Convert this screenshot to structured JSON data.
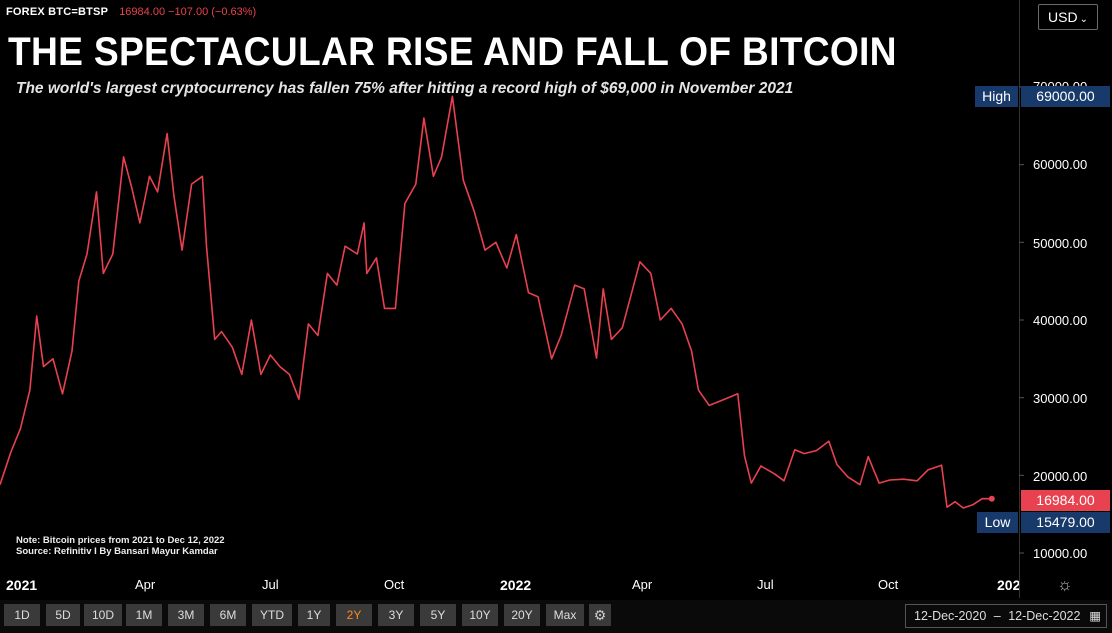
{
  "header": {
    "symbol": "FOREX BTC=BTSP",
    "price_change": "16984.00 −107.00 (−0.63%)",
    "currency": "USD",
    "currency_chevron": "⌄"
  },
  "title": "THE SPECTACULAR RISE AND FALL OF BITCOIN",
  "subtitle": "The world's largest cryptocurrency has fallen 75% after hitting a record high of $69,000 in November 2021",
  "note_line1": "Note: Bitcoin prices from 2021 to Dec 12, 2022",
  "note_line2": "Source: Refinitiv I By Bansari Mayur Kamdar",
  "y_axis": {
    "ticks": [
      "70000.00",
      "60000.00",
      "50000.00",
      "40000.00",
      "30000.00",
      "20000.00",
      "10000.00"
    ],
    "high_label": "High",
    "high_value": "69000.00",
    "low_label": "Low",
    "low_value": "15479.00",
    "last_value": "16984.00"
  },
  "x_axis": {
    "ticks": [
      {
        "label": "2021",
        "year": true
      },
      {
        "label": "Apr",
        "year": false
      },
      {
        "label": "Jul",
        "year": false
      },
      {
        "label": "Oct",
        "year": false
      },
      {
        "label": "2022",
        "year": true
      },
      {
        "label": "Apr",
        "year": false
      },
      {
        "label": "Jul",
        "year": false
      },
      {
        "label": "Oct",
        "year": false
      },
      {
        "label": "202",
        "year": true
      }
    ]
  },
  "range_buttons": [
    "1D",
    "5D",
    "10D",
    "1M",
    "3M",
    "6M",
    "YTD",
    "1Y",
    "2Y",
    "3Y",
    "5Y",
    "10Y",
    "20Y",
    "Max"
  ],
  "active_range": "2Y",
  "date_range": {
    "from": "12-Dec-2020",
    "sep": "–",
    "to": "12-Dec-2022"
  },
  "colors": {
    "line": "#e8414f",
    "background": "#000000",
    "tag_navy": "#183a6a",
    "active_range": "#ff8a1f"
  },
  "chart_data": {
    "type": "line",
    "series": [
      {
        "values": [
          [
            "2020-12-12",
            18800
          ],
          [
            "2020-12-20",
            23000
          ],
          [
            "2020-12-27",
            26000
          ],
          [
            "2021-01-03",
            31000
          ],
          [
            "2021-01-08",
            40500
          ],
          [
            "2021-01-13",
            34000
          ],
          [
            "2021-01-20",
            35000
          ],
          [
            "2021-01-27",
            30500
          ],
          [
            "2021-02-03",
            36000
          ],
          [
            "2021-02-08",
            45000
          ],
          [
            "2021-02-14",
            48500
          ],
          [
            "2021-02-21",
            56500
          ],
          [
            "2021-02-26",
            46000
          ],
          [
            "2021-03-05",
            48500
          ],
          [
            "2021-03-13",
            61000
          ],
          [
            "2021-03-19",
            57000
          ],
          [
            "2021-03-25",
            52500
          ],
          [
            "2021-04-01",
            58500
          ],
          [
            "2021-04-07",
            56500
          ],
          [
            "2021-04-14",
            64000
          ],
          [
            "2021-04-19",
            56000
          ],
          [
            "2021-04-25",
            49000
          ],
          [
            "2021-05-02",
            57500
          ],
          [
            "2021-05-10",
            58500
          ],
          [
            "2021-05-13",
            49500
          ],
          [
            "2021-05-19",
            37500
          ],
          [
            "2021-05-24",
            38500
          ],
          [
            "2021-06-01",
            36500
          ],
          [
            "2021-06-08",
            33000
          ],
          [
            "2021-06-15",
            40000
          ],
          [
            "2021-06-22",
            33000
          ],
          [
            "2021-06-29",
            35500
          ],
          [
            "2021-07-06",
            34000
          ],
          [
            "2021-07-13",
            33000
          ],
          [
            "2021-07-20",
            29800
          ],
          [
            "2021-07-27",
            39500
          ],
          [
            "2021-08-03",
            38000
          ],
          [
            "2021-08-10",
            46000
          ],
          [
            "2021-08-17",
            44500
          ],
          [
            "2021-08-23",
            49500
          ],
          [
            "2021-09-01",
            48500
          ],
          [
            "2021-09-06",
            52500
          ],
          [
            "2021-09-08",
            46000
          ],
          [
            "2021-09-15",
            48000
          ],
          [
            "2021-09-21",
            41500
          ],
          [
            "2021-09-29",
            41500
          ],
          [
            "2021-10-06",
            55000
          ],
          [
            "2021-10-14",
            57500
          ],
          [
            "2021-10-20",
            66000
          ],
          [
            "2021-10-27",
            58500
          ],
          [
            "2021-11-02",
            61000
          ],
          [
            "2021-11-10",
            68800
          ],
          [
            "2021-11-18",
            58000
          ],
          [
            "2021-11-26",
            54000
          ],
          [
            "2021-12-04",
            49000
          ],
          [
            "2021-12-12",
            50000
          ],
          [
            "2021-12-20",
            46700
          ],
          [
            "2021-12-27",
            51000
          ],
          [
            "2022-01-05",
            43500
          ],
          [
            "2022-01-12",
            43000
          ],
          [
            "2022-01-22",
            35000
          ],
          [
            "2022-01-29",
            38000
          ],
          [
            "2022-02-08",
            44500
          ],
          [
            "2022-02-15",
            44000
          ],
          [
            "2022-02-24",
            35100
          ],
          [
            "2022-03-01",
            44000
          ],
          [
            "2022-03-07",
            37500
          ],
          [
            "2022-03-15",
            39000
          ],
          [
            "2022-03-28",
            47500
          ],
          [
            "2022-04-05",
            46000
          ],
          [
            "2022-04-12",
            40000
          ],
          [
            "2022-04-20",
            41500
          ],
          [
            "2022-04-28",
            39500
          ],
          [
            "2022-05-05",
            36000
          ],
          [
            "2022-05-10",
            31000
          ],
          [
            "2022-05-18",
            29000
          ],
          [
            "2022-05-25",
            29500
          ],
          [
            "2022-06-01",
            30000
          ],
          [
            "2022-06-08",
            30500
          ],
          [
            "2022-06-13",
            22500
          ],
          [
            "2022-06-18",
            19000
          ],
          [
            "2022-06-25",
            21200
          ],
          [
            "2022-07-05",
            20200
          ],
          [
            "2022-07-12",
            19300
          ],
          [
            "2022-07-20",
            23300
          ],
          [
            "2022-07-27",
            22800
          ],
          [
            "2022-08-05",
            23200
          ],
          [
            "2022-08-14",
            24400
          ],
          [
            "2022-08-20",
            21400
          ],
          [
            "2022-08-28",
            19800
          ],
          [
            "2022-09-06",
            18800
          ],
          [
            "2022-09-12",
            22400
          ],
          [
            "2022-09-20",
            19000
          ],
          [
            "2022-09-28",
            19400
          ],
          [
            "2022-10-08",
            19500
          ],
          [
            "2022-10-18",
            19300
          ],
          [
            "2022-10-26",
            20700
          ],
          [
            "2022-11-05",
            21300
          ],
          [
            "2022-11-09",
            15900
          ],
          [
            "2022-11-15",
            16600
          ],
          [
            "2022-11-21",
            15800
          ],
          [
            "2022-11-28",
            16200
          ],
          [
            "2022-12-05",
            17000
          ],
          [
            "2022-12-12",
            16984
          ]
        ]
      }
    ],
    "xlim": [
      "2020-12-12",
      "2023-01-01"
    ],
    "ylim": [
      10000,
      72000
    ],
    "x_ticks": [
      "2021",
      "Apr",
      "Jul",
      "Oct",
      "2022",
      "Apr",
      "Jul",
      "Oct",
      "202"
    ],
    "y_ticks": [
      10000,
      20000,
      30000,
      40000,
      50000,
      60000,
      70000
    ],
    "grid": false,
    "markers": {
      "high": 69000,
      "low": 15479,
      "last": 16984
    }
  }
}
